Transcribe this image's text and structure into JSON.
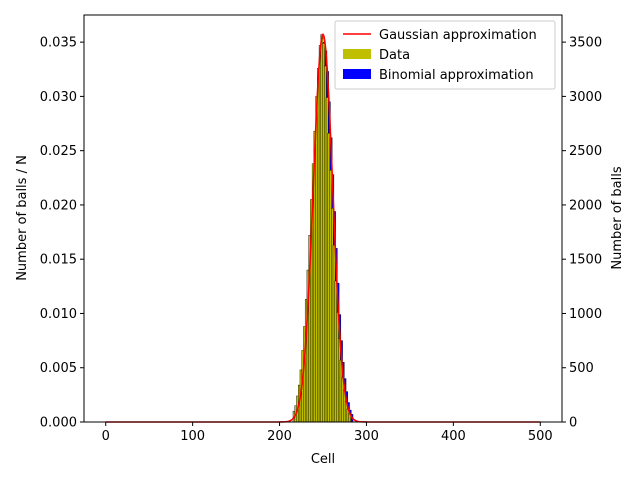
{
  "chart_data": {
    "type": "bar",
    "title": "",
    "xlabel": "Cell",
    "ylabel_left": "Number of balls / N",
    "ylabel_right": "Number of balls",
    "xlim": [
      -25,
      525
    ],
    "ylim_left": [
      0,
      0.0375
    ],
    "ylim_right": [
      0,
      3750
    ],
    "x_ticks": [
      "0",
      "100",
      "200",
      "300",
      "400",
      "500"
    ],
    "x_tick_values": [
      0,
      100,
      200,
      300,
      400,
      500
    ],
    "y_ticks_left": [
      "0.000",
      "0.005",
      "0.010",
      "0.015",
      "0.020",
      "0.025",
      "0.030",
      "0.035"
    ],
    "y_tick_values_left": [
      0,
      0.005,
      0.01,
      0.015,
      0.02,
      0.025,
      0.03,
      0.035
    ],
    "y_ticks_right": [
      "0",
      "500",
      "1000",
      "1500",
      "2000",
      "2500",
      "3000",
      "3500"
    ],
    "y_tick_values_right": [
      0,
      500,
      1000,
      1500,
      2000,
      2500,
      3000,
      3500
    ],
    "legend_position": "top-right",
    "series": [
      {
        "name": "Gaussian approximation",
        "kind": "line",
        "color": "#ff0000",
        "mean": 250,
        "sigma": 11.18,
        "peak": 0.0357,
        "x_range": [
          0,
          500
        ]
      },
      {
        "name": "Data",
        "kind": "bar",
        "color": "#bfbf00"
      },
      {
        "name": "Binomial approximation",
        "kind": "bar",
        "color": "#0000ff"
      }
    ],
    "bars": {
      "x": [
        218,
        220,
        222,
        224,
        226,
        228,
        230,
        232,
        234,
        236,
        238,
        240,
        242,
        244,
        246,
        248,
        250,
        252,
        254,
        256,
        258,
        260,
        262,
        264,
        266,
        268,
        270,
        272,
        274,
        276,
        278,
        280,
        282
      ],
      "data": [
        0.001,
        0.0015,
        0.0024,
        0.0034,
        0.0048,
        0.0066,
        0.0088,
        0.0113,
        0.014,
        0.0172,
        0.0205,
        0.0238,
        0.0268,
        0.03,
        0.0326,
        0.0347,
        0.0357,
        0.0349,
        0.0328,
        0.0299,
        0.0266,
        0.0232,
        0.0197,
        0.0163,
        0.013,
        0.0101,
        0.0077,
        0.0057,
        0.0041,
        0.0029,
        0.0019,
        0.0012,
        0.0008
      ],
      "binomial": [
        0.0009,
        0.0014,
        0.0023,
        0.0032,
        0.0046,
        0.0065,
        0.0087,
        0.0112,
        0.0145,
        0.0175,
        0.0208,
        0.0241,
        0.0272,
        0.0293,
        0.0325,
        0.0345,
        0.035,
        0.0342,
        0.0323,
        0.0295,
        0.0262,
        0.0228,
        0.0194,
        0.016,
        0.0128,
        0.0099,
        0.0075,
        0.0055,
        0.004,
        0.0028,
        0.0018,
        0.0011,
        0.0007
      ]
    }
  }
}
